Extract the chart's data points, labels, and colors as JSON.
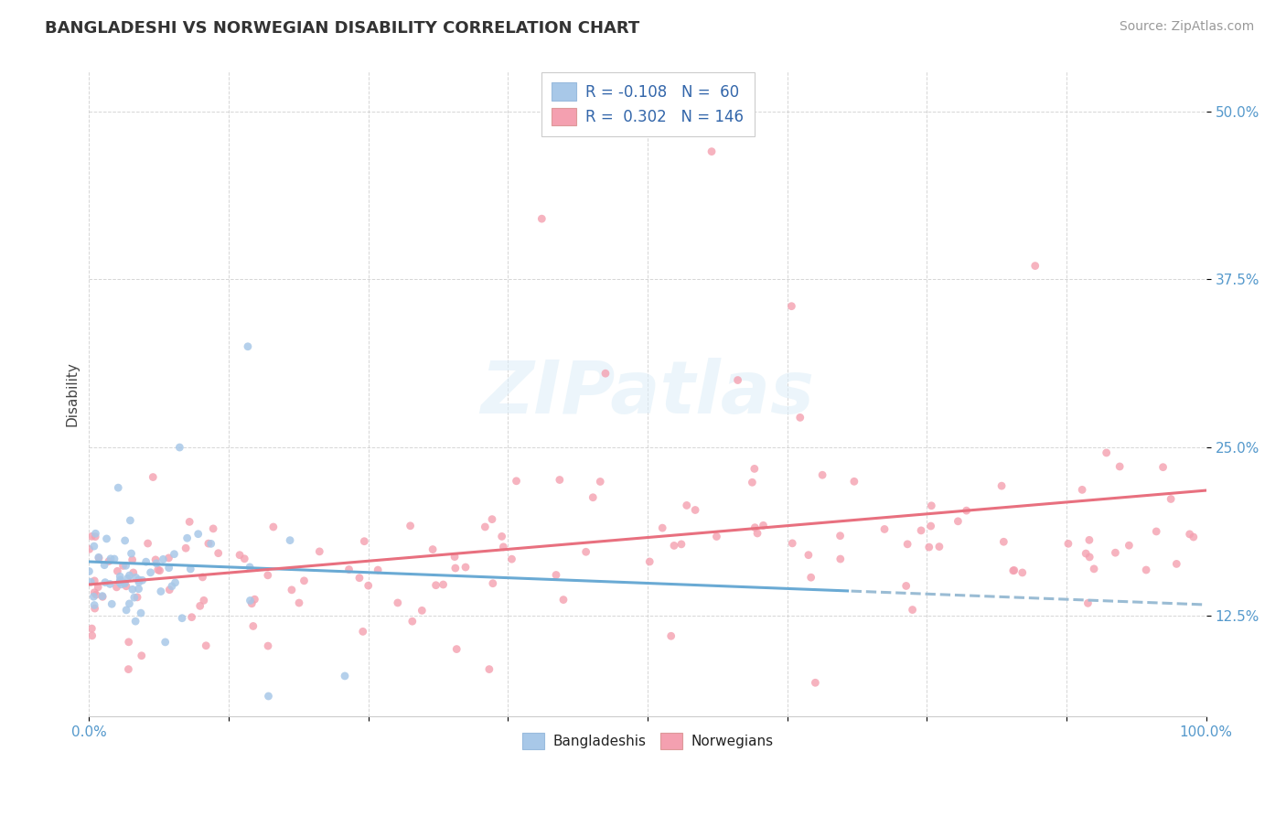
{
  "title": "BANGLADESHI VS NORWEGIAN DISABILITY CORRELATION CHART",
  "source": "Source: ZipAtlas.com",
  "ylabel": "Disability",
  "xlim": [
    0.0,
    1.0
  ],
  "ylim": [
    0.05,
    0.53
  ],
  "yticks": [
    0.125,
    0.25,
    0.375,
    0.5
  ],
  "ytick_labels": [
    "12.5%",
    "25.0%",
    "37.5%",
    "50.0%"
  ],
  "xtick_labels": [
    "0.0%",
    "100.0%"
  ],
  "color_bangladeshi": "#a8c8e8",
  "color_norwegian": "#f4a0b0",
  "color_line_bangladeshi": "#6aaad4",
  "color_line_norwegian": "#e8707f",
  "color_line_dashed": "#9abcd4",
  "R_bangladeshi": -0.108,
  "N_bangladeshi": 60,
  "R_norwegian": 0.302,
  "N_norwegian": 146,
  "watermark": "ZIPatlas",
  "legend_label_bangladeshi": "Bangladeshis",
  "legend_label_norwegian": "Norwegians",
  "title_fontsize": 13,
  "source_fontsize": 10,
  "tick_fontsize": 11,
  "legend_fontsize": 12
}
